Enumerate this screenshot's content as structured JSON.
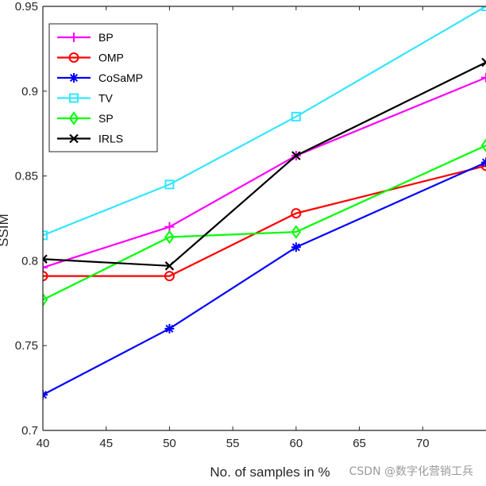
{
  "chart_data": {
    "type": "line",
    "title": "",
    "xlabel": "No. of samples in %",
    "ylabel": "SSIM",
    "xlim": [
      40,
      75
    ],
    "ylim": [
      0.7,
      0.95
    ],
    "xticks": [
      40,
      45,
      50,
      55,
      60,
      65,
      70
    ],
    "yticks": [
      0.7,
      0.75,
      0.8,
      0.85,
      0.9,
      0.95
    ],
    "xtick_labels": [
      "40",
      "45",
      "50",
      "55",
      "60",
      "65",
      "70"
    ],
    "ytick_labels": [
      "0.7",
      "0.75",
      "0.8",
      "0.85",
      "0.9",
      "0.95"
    ],
    "legend_position": "top-left",
    "grid": false,
    "series": [
      {
        "name": "BP",
        "color": "#ff00ff",
        "marker": "plus",
        "x": [
          40,
          50,
          60,
          75
        ],
        "values": [
          0.796,
          0.82,
          0.862,
          0.908
        ]
      },
      {
        "name": "OMP",
        "color": "#ff0000",
        "marker": "circle",
        "x": [
          40,
          50,
          60,
          75
        ],
        "values": [
          0.791,
          0.791,
          0.828,
          0.856
        ]
      },
      {
        "name": "CoSaMP",
        "color": "#0000ff",
        "marker": "asterisk",
        "x": [
          40,
          50,
          60,
          75
        ],
        "values": [
          0.721,
          0.76,
          0.808,
          0.858
        ]
      },
      {
        "name": "TV",
        "color": "#33e6ff",
        "marker": "square",
        "x": [
          40,
          50,
          60,
          75
        ],
        "values": [
          0.815,
          0.845,
          0.885,
          0.95
        ]
      },
      {
        "name": "SP",
        "color": "#00ff00",
        "marker": "diamond",
        "x": [
          40,
          50,
          60,
          75
        ],
        "values": [
          0.777,
          0.814,
          0.817,
          0.868
        ]
      },
      {
        "name": "IRLS",
        "color": "#000000",
        "marker": "x",
        "x": [
          40,
          50,
          60,
          75
        ],
        "values": [
          0.801,
          0.797,
          0.862,
          0.917
        ]
      }
    ]
  },
  "watermark": "CSDN @数字化营销工兵"
}
